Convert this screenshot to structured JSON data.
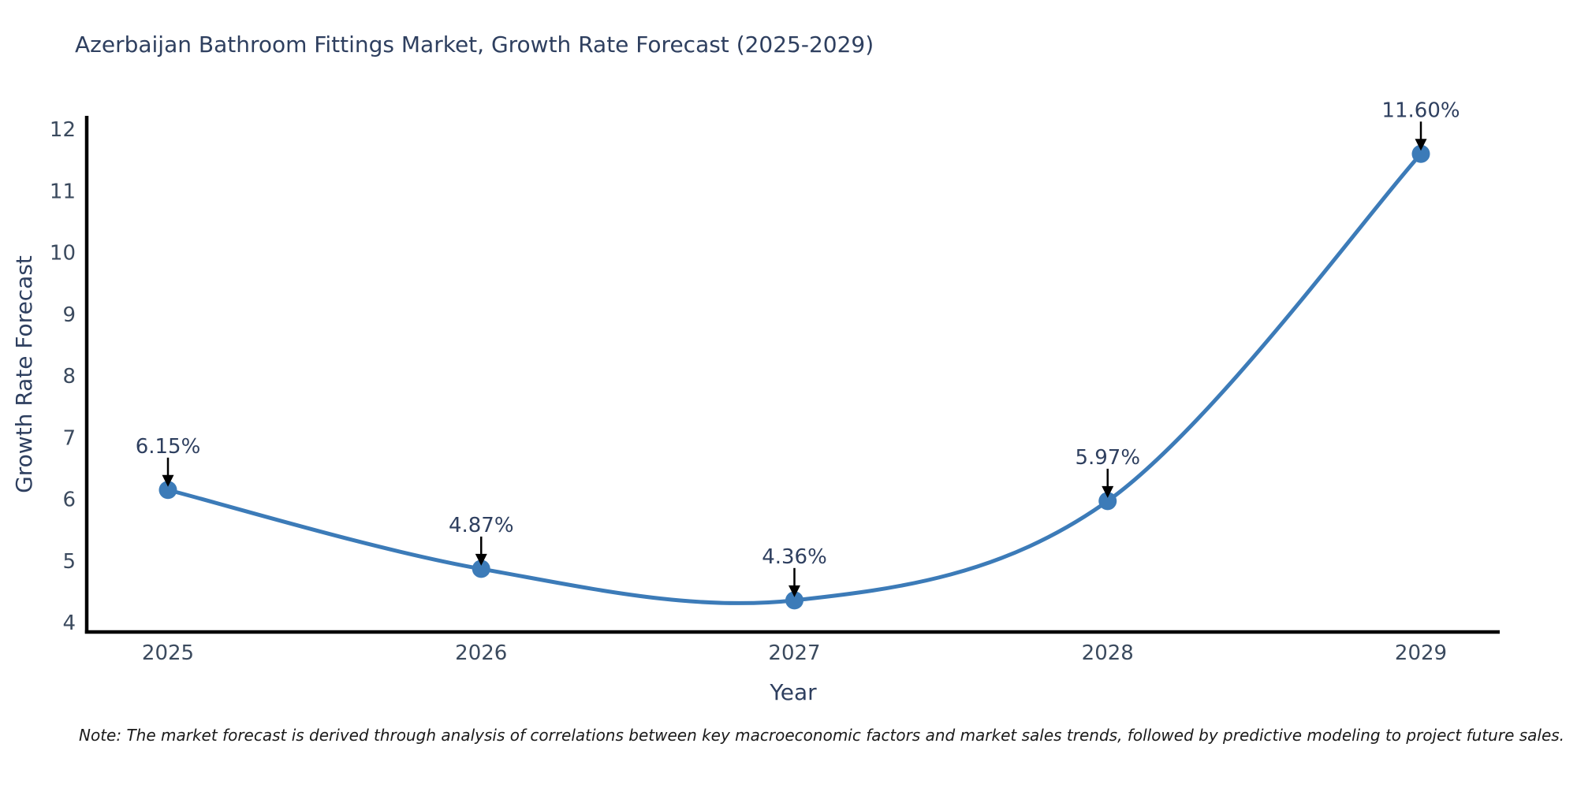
{
  "chart": {
    "note": "Note: The market forecast is derived through analysis of correlations between key macroeconomic factors and market sales trends, followed by predictive modeling to project future sales.",
    "colors": {
      "line": "#3c7bb8",
      "marker": "#3c7bb8",
      "axis_spine": "#000000",
      "arrow": "#000000",
      "title_text": "#2e3f5f",
      "tick_text": "#3b4a5e",
      "background": "#ffffff"
    }
  },
  "chart_data": {
    "type": "line",
    "title": "Azerbaijan Bathroom Fittings Market, Growth Rate Forecast (2025-2029)",
    "xlabel": "Year",
    "ylabel": "Growth Rate Forecast",
    "x": [
      2025,
      2026,
      2027,
      2028,
      2029
    ],
    "series": [
      {
        "name": "Growth Rate Forecast",
        "values": [
          6.15,
          4.87,
          4.36,
          5.97,
          11.6
        ]
      }
    ],
    "point_labels": [
      "6.15%",
      "4.87%",
      "4.36%",
      "5.97%",
      "11.60%"
    ],
    "yticks": [
      4,
      5,
      6,
      7,
      8,
      9,
      10,
      11,
      12
    ],
    "ylim": [
      4,
      12
    ],
    "grid": false,
    "legend_position": "none",
    "smooth_line": true,
    "marker_style": "circle",
    "annotation_style": "value labels above points with black down arrows"
  }
}
